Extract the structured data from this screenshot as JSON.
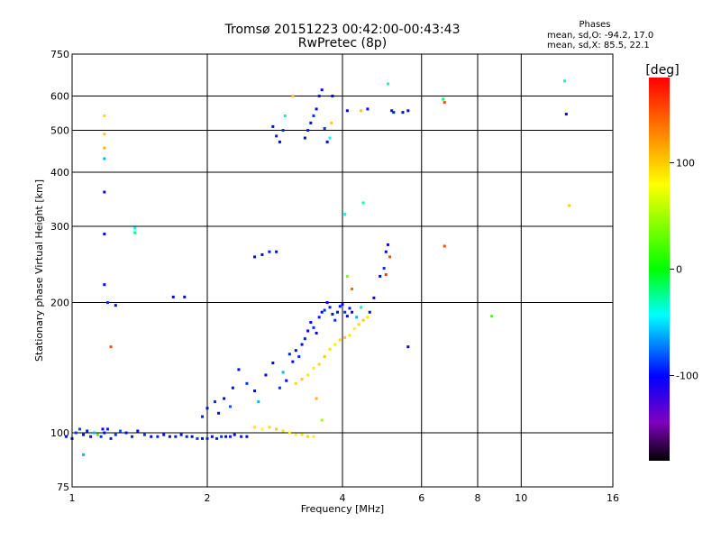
{
  "chart_data": {
    "type": "scatter",
    "title": "Tromsø 20151223 00:42:00-00:43:43",
    "subtitle": "RwPretec (8p)",
    "xlabel": "Frequency [MHz]",
    "ylabel": "Stationary phase Virtual Height [km]",
    "x_scale": "log",
    "y_scale": "log",
    "xlim": [
      1,
      16
    ],
    "ylim": [
      75,
      750
    ],
    "x_ticks": [
      1,
      2,
      4,
      6,
      8,
      10,
      16
    ],
    "y_ticks": [
      75,
      100,
      200,
      300,
      400,
      500,
      600,
      750
    ],
    "grid": true,
    "stats": {
      "heading": "Phases",
      "line_o": "mean, sd,O: -94.2, 17.0",
      "line_x": "mean, sd,X:  85.5, 22.1"
    },
    "colorbar": {
      "label": "[deg]",
      "range": [
        -180,
        180
      ],
      "ticks": [
        100,
        0,
        -100
      ],
      "colors": [
        "#ff0000",
        "#ff8000",
        "#ffff00",
        "#00ff00",
        "#00ffff",
        "#0000ff",
        "#8000c0",
        "#000000"
      ]
    },
    "points": [
      [
        0.97,
        98,
        -95
      ],
      [
        1.0,
        97,
        -100
      ],
      [
        1.02,
        100,
        -90
      ],
      [
        1.04,
        102,
        -85
      ],
      [
        1.06,
        99,
        -100
      ],
      [
        1.08,
        101,
        -95
      ],
      [
        1.1,
        98,
        -110
      ],
      [
        1.12,
        100,
        -60
      ],
      [
        1.14,
        99,
        20
      ],
      [
        1.16,
        98,
        -90
      ],
      [
        1.18,
        100,
        -100
      ],
      [
        1.2,
        102,
        -95
      ],
      [
        1.25,
        99,
        -90
      ],
      [
        1.28,
        101,
        -80
      ],
      [
        1.32,
        100,
        -100
      ],
      [
        1.36,
        98,
        -95
      ],
      [
        1.4,
        101,
        -100
      ],
      [
        1.45,
        99,
        -90
      ],
      [
        1.5,
        98,
        -100
      ],
      [
        1.55,
        98,
        -95
      ],
      [
        1.6,
        99,
        -100
      ],
      [
        1.65,
        98,
        -105
      ],
      [
        1.7,
        98,
        -95
      ],
      [
        1.75,
        99,
        -100
      ],
      [
        1.8,
        98,
        -95
      ],
      [
        1.85,
        98,
        -100
      ],
      [
        1.9,
        97,
        -90
      ],
      [
        1.95,
        97,
        -100
      ],
      [
        2.0,
        97,
        -95
      ],
      [
        2.05,
        98,
        -100
      ],
      [
        2.1,
        97,
        -95
      ],
      [
        2.15,
        98,
        -90
      ],
      [
        2.2,
        98,
        -100
      ],
      [
        2.25,
        98,
        -95
      ],
      [
        2.3,
        99,
        -100
      ],
      [
        2.38,
        98,
        -95
      ],
      [
        2.45,
        98,
        -100
      ],
      [
        2.55,
        103,
        90
      ],
      [
        2.65,
        102,
        80
      ],
      [
        2.75,
        103,
        95
      ],
      [
        2.85,
        102,
        100
      ],
      [
        2.95,
        101,
        90
      ],
      [
        3.05,
        100,
        85
      ],
      [
        3.15,
        99,
        80
      ],
      [
        3.25,
        99,
        90
      ],
      [
        3.35,
        98,
        95
      ],
      [
        3.45,
        98,
        85
      ],
      [
        1.06,
        89,
        -60
      ],
      [
        1.17,
        102,
        -100
      ],
      [
        1.22,
        97,
        -95
      ],
      [
        1.18,
        540,
        95
      ],
      [
        1.18,
        490,
        100
      ],
      [
        1.18,
        455,
        110
      ],
      [
        1.18,
        430,
        -60
      ],
      [
        1.18,
        360,
        -100
      ],
      [
        1.18,
        288,
        -100
      ],
      [
        1.18,
        220,
        -100
      ],
      [
        1.2,
        200,
        -90
      ],
      [
        1.25,
        197,
        -100
      ],
      [
        1.22,
        158,
        150
      ],
      [
        1.38,
        290,
        -20
      ],
      [
        1.38,
        297,
        -40
      ],
      [
        1.68,
        206,
        -100
      ],
      [
        1.78,
        206,
        -100
      ],
      [
        2.28,
        127,
        -100
      ],
      [
        2.18,
        120,
        -100
      ],
      [
        2.08,
        118,
        -90
      ],
      [
        2.0,
        114,
        -100
      ],
      [
        1.95,
        109,
        -95
      ],
      [
        2.12,
        111,
        -100
      ],
      [
        2.25,
        115,
        -80
      ],
      [
        2.35,
        140,
        -100
      ],
      [
        2.45,
        130,
        -90
      ],
      [
        2.55,
        125,
        -100
      ],
      [
        2.6,
        118,
        -60
      ],
      [
        2.7,
        136,
        -100
      ],
      [
        2.8,
        145,
        -100
      ],
      [
        2.9,
        127,
        -90
      ],
      [
        2.95,
        138,
        -60
      ],
      [
        3.0,
        132,
        -100
      ],
      [
        3.05,
        152,
        -95
      ],
      [
        3.1,
        146,
        -100
      ],
      [
        3.15,
        155,
        -100
      ],
      [
        3.2,
        150,
        -90
      ],
      [
        3.25,
        160,
        -100
      ],
      [
        3.3,
        165,
        -95
      ],
      [
        3.35,
        172,
        -100
      ],
      [
        3.4,
        180,
        -100
      ],
      [
        3.45,
        175,
        -90
      ],
      [
        3.5,
        170,
        -100
      ],
      [
        3.55,
        185,
        -95
      ],
      [
        3.6,
        190,
        -100
      ],
      [
        3.65,
        192,
        -90
      ],
      [
        3.7,
        200,
        -100
      ],
      [
        3.75,
        195,
        -95
      ],
      [
        3.8,
        188,
        -100
      ],
      [
        3.85,
        182,
        -90
      ],
      [
        3.9,
        190,
        -100
      ],
      [
        3.95,
        196,
        -95
      ],
      [
        4.0,
        198,
        -100
      ],
      [
        4.05,
        190,
        -90
      ],
      [
        4.1,
        186,
        -100
      ],
      [
        4.15,
        194,
        -95
      ],
      [
        4.2,
        190,
        -100
      ],
      [
        4.3,
        185,
        -60
      ],
      [
        4.4,
        195,
        -30
      ],
      [
        3.15,
        130,
        95
      ],
      [
        3.25,
        133,
        100
      ],
      [
        3.35,
        136,
        90
      ],
      [
        3.45,
        141,
        85
      ],
      [
        3.55,
        144,
        95
      ],
      [
        3.65,
        150,
        100
      ],
      [
        3.75,
        156,
        90
      ],
      [
        3.85,
        160,
        85
      ],
      [
        3.95,
        164,
        95
      ],
      [
        4.05,
        166,
        100
      ],
      [
        4.15,
        168,
        90
      ],
      [
        4.25,
        174,
        85
      ],
      [
        4.35,
        178,
        95
      ],
      [
        4.45,
        182,
        100
      ],
      [
        4.55,
        185,
        90
      ],
      [
        3.5,
        120,
        110
      ],
      [
        3.6,
        107,
        50
      ],
      [
        4.6,
        190,
        -100
      ],
      [
        4.7,
        205,
        -100
      ],
      [
        4.85,
        230,
        -100
      ],
      [
        4.95,
        240,
        -90
      ],
      [
        5.0,
        262,
        -100
      ],
      [
        5.05,
        272,
        -100
      ],
      [
        5.1,
        255,
        150
      ],
      [
        5.0,
        232,
        160
      ],
      [
        5.6,
        158,
        -100
      ],
      [
        4.1,
        230,
        40
      ],
      [
        4.2,
        215,
        140
      ],
      [
        2.55,
        255,
        -100
      ],
      [
        2.65,
        258,
        -100
      ],
      [
        2.75,
        262,
        -95
      ],
      [
        2.85,
        262,
        -100
      ],
      [
        2.8,
        510,
        -100
      ],
      [
        2.85,
        485,
        -95
      ],
      [
        2.9,
        470,
        -100
      ],
      [
        2.95,
        500,
        -90
      ],
      [
        2.98,
        540,
        -30
      ],
      [
        3.1,
        600,
        100
      ],
      [
        3.3,
        480,
        -100
      ],
      [
        3.35,
        500,
        -95
      ],
      [
        3.4,
        520,
        -100
      ],
      [
        3.45,
        540,
        -90
      ],
      [
        3.5,
        560,
        -100
      ],
      [
        3.55,
        600,
        -95
      ],
      [
        3.6,
        620,
        -100
      ],
      [
        3.65,
        505,
        -90
      ],
      [
        3.7,
        470,
        -100
      ],
      [
        3.75,
        480,
        -40
      ],
      [
        3.78,
        520,
        100
      ],
      [
        3.8,
        600,
        -100
      ],
      [
        4.1,
        555,
        -100
      ],
      [
        4.4,
        555,
        100
      ],
      [
        4.55,
        560,
        -100
      ],
      [
        5.05,
        640,
        -30
      ],
      [
        5.15,
        555,
        -100
      ],
      [
        5.2,
        550,
        -95
      ],
      [
        5.45,
        550,
        -100
      ],
      [
        5.6,
        555,
        -100
      ],
      [
        4.45,
        340,
        -30
      ],
      [
        4.05,
        320,
        -40
      ],
      [
        6.7,
        590,
        -20
      ],
      [
        6.75,
        580,
        150
      ],
      [
        6.75,
        270,
        150
      ],
      [
        8.6,
        186,
        20
      ],
      [
        12.5,
        650,
        -30
      ],
      [
        12.6,
        545,
        -100
      ],
      [
        12.8,
        335,
        100
      ]
    ]
  }
}
